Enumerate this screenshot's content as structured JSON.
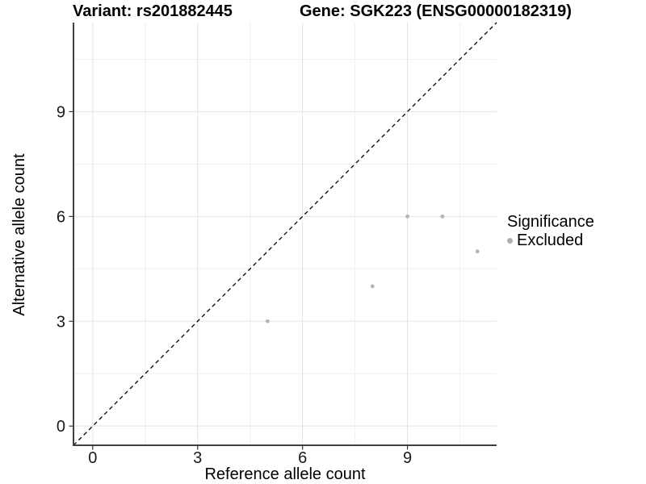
{
  "chart_data": {
    "type": "scatter",
    "title_left": "Variant: rs201882445",
    "title_right": "Gene: SGK223 (ENSG00000182319)",
    "xlabel": "Reference allele count",
    "ylabel": "Alternative allele count",
    "xlim": [
      -0.55,
      11.55
    ],
    "ylim": [
      -0.55,
      11.55
    ],
    "x_major_ticks": [
      0,
      3,
      6,
      9
    ],
    "y_major_ticks": [
      0,
      3,
      6,
      9
    ],
    "x_minor_gridlines": [
      1.5,
      4.5,
      7.5,
      10.5
    ],
    "y_minor_gridlines": [
      1.5,
      4.5,
      7.5,
      10.5
    ],
    "grid": true,
    "identity_line": {
      "equation": "y = x",
      "style": "dashed",
      "color": "#000000"
    },
    "legend": {
      "title": "Significance",
      "position": "right",
      "items": [
        {
          "label": "Excluded",
          "color": "#aeaeae"
        }
      ]
    },
    "series": [
      {
        "name": "Excluded",
        "color": "#b4b4b4",
        "points": [
          {
            "x": 5,
            "y": 3
          },
          {
            "x": 8,
            "y": 4
          },
          {
            "x": 9,
            "y": 6
          },
          {
            "x": 10,
            "y": 6
          },
          {
            "x": 11,
            "y": 5
          }
        ]
      }
    ]
  },
  "colors": {
    "background": "#ffffff",
    "grid_major": "#e3e3e3",
    "grid_minor": "#f0f0f0",
    "axis_line": "#404040",
    "tick_mark": "#333333",
    "tick_text": "#1a1a1a",
    "point": "#b4b4b4",
    "legend_point": "#aeaeae",
    "identity_line": "#000000"
  }
}
